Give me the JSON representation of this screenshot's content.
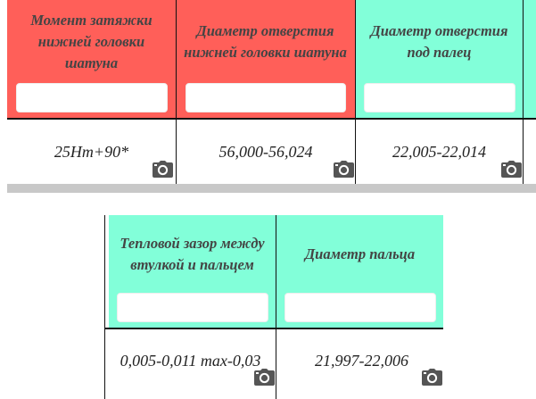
{
  "table1": {
    "columns": [
      {
        "header": "Момент затяжки нижней головки шатуна",
        "filter_value": "",
        "value": "25Нm+90*"
      },
      {
        "header": "Диаметр отверстия нижней головки шатуна",
        "filter_value": "",
        "value": "56,000-56,024"
      },
      {
        "header": "Диаметр отверстия под палец",
        "filter_value": "",
        "value": "22,005-22,014"
      }
    ]
  },
  "table2": {
    "columns": [
      {
        "header": "Тепловой зазор между втулкой и пальцем",
        "filter_value": "",
        "value": "0,005-0,011 max-0,03"
      },
      {
        "header": "Диаметр пальца",
        "filter_value": "",
        "value": "21,997-22,006"
      }
    ]
  },
  "icons": {
    "photo": "camera-icon"
  },
  "colors": {
    "header_red": "#ff5f59",
    "header_green": "#82ffd9",
    "header_text": "#444444",
    "icon": "#555555"
  }
}
